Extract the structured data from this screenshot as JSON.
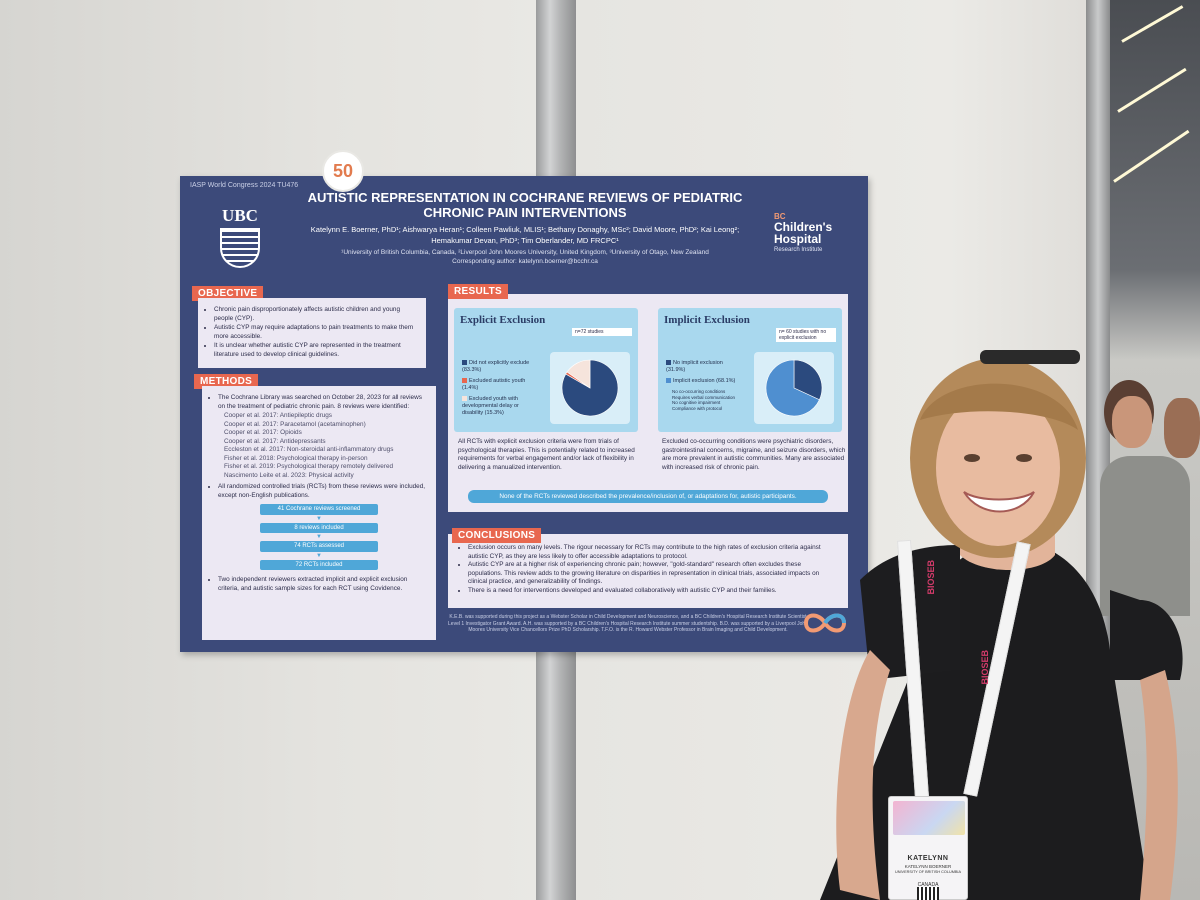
{
  "poster": {
    "badge_mark": "50",
    "conference": "IASP World Congress 2024 TU476",
    "ubc_logo_text": "UBC",
    "title": "AUTISTIC REPRESENTATION IN COCHRANE REVIEWS OF PEDIATRIC CHRONIC PAIN INTERVENTIONS",
    "authors": "Katelynn E. Boerner, PhD¹; Aishwarya Heran¹; Colleen Pawliuk, MLIS¹; Bethany Donaghy, MSc²; David Moore, PhD²; Kai Leong²; Hemakumar Devan, PhD³; Tim Oberlander, MD FRCPC¹",
    "affiliations": "¹University of British Columbia, Canada, ²Liverpool John Moores University, United Kingdom, ³University of Otago, New Zealand",
    "corresponding": "Corresponding author: katelynn.boerner@bcchr.ca",
    "hospital_logo": {
      "top": "BC",
      "main": "Children's Hospital",
      "sub": "Research Institute"
    },
    "objective": {
      "heading": "OBJECTIVE",
      "bullets": [
        "Chronic pain disproportionately affects autistic children and young people (CYP).",
        "Autistic CYP may require adaptations to pain treatments to make them more accessible.",
        "It is unclear whether autistic CYP are represented in the treatment literature used to develop clinical guidelines."
      ]
    },
    "methods": {
      "heading": "METHODS",
      "intro": "The Cochrane Library was searched on October 28, 2023 for all reviews on the treatment of pediatric chronic pain. 8 reviews were identified:",
      "reviews": [
        "Cooper et al. 2017: Antiepileptic drugs",
        "Cooper et al. 2017: Paracetamol (acetaminophen)",
        "Cooper et al. 2017: Opioids",
        "Cooper et al. 2017: Antidepressants",
        "Eccleston et al. 2017: Non-steroidal anti-inflammatory drugs",
        "Fisher et al. 2018: Psychological therapy in-person",
        "Fisher et al. 2019: Psychological therapy remotely delivered",
        "Nascimento Leite et al. 2023: Physical activity"
      ],
      "rct_note": "All randomized controlled trials (RCTs) from these reviews were included, except non-English publications.",
      "flow": [
        "41 Cochrane reviews screened",
        "8 reviews included",
        "74 RCTs assessed",
        "72 RCTs included"
      ],
      "closing": "Two independent reviewers extracted implicit and explicit exclusion criteria, and autistic sample sizes for each RCT using Covidence."
    },
    "results": {
      "heading": "RESULTS",
      "explicit": {
        "title": "Explicit Exclusion",
        "note": "n=72 studies",
        "legend": [
          {
            "label": "Did not explicitly exclude (83.3%)",
            "color": "#2b4a7e"
          },
          {
            "label": "Excluded autistic youth (1.4%)",
            "color": "#e8674f"
          },
          {
            "label": "Excluded youth with developmental delay or disability (15.3%)",
            "color": "#f6e4dc"
          }
        ],
        "text": "All RCTs with explicit exclusion criteria were from trials of psychological therapies. This is potentially related to increased requirements for verbal engagement and/or lack of flexibility in delivering a manualized intervention."
      },
      "implicit": {
        "title": "Implicit Exclusion",
        "note": "n= 60 studies with no explicit exclusion",
        "legend": [
          {
            "label": "No implicit exclusion (31.9%)",
            "color": "#2b4a7e"
          },
          {
            "label": "Implicit exclusion (68.1%)",
            "color": "#4f8fd0"
          }
        ],
        "sub_items": [
          "No co-occurring conditions",
          "Requires verbal communication",
          "No cognitive impairment",
          "Compliance with protocol"
        ],
        "text": "Excluded co-occurring conditions were psychiatric disorders, gastrointestinal concerns, migraine, and seizure disorders, which are more prevalent in autistic communities. Many are associated with increased risk of chronic pain."
      },
      "banner": "None of the RCTs reviewed described the prevalence/inclusion of, or adaptations for, autistic participants."
    },
    "conclusions": {
      "heading": "CONCLUSIONS",
      "bullets": [
        "Exclusion occurs on many levels. The rigour necessary for RCTs may contribute to the high rates of exclusion criteria against autistic CYP, as they are less likely to offer accessible adaptations to protocol.",
        "Autistic CYP are at a higher risk of experiencing chronic pain; however, \"gold-standard\" research often excludes these populations. This review adds to the growing literature on disparities in representation in clinical trials, associated impacts on clinical practice, and generalizability of findings.",
        "There is a need for interventions developed and evaluated collaboratively with autistic CYP and their families."
      ]
    },
    "acknowledgement": "K.E.B. was supported during this project as a Webster Scholar in Child Development and Neuroscience, and a BC Children's Hospital Research Institute Scientist Level 1 Investigator Grant Award. A.H. was supported by a BC Children's Hospital Research Institute summer studentship. B.D. was supported by a Liverpool John Moores University Vice Chancellors Prize PhD Scholarship. T.F.O. is the R. Howard Webster Professor in Brain Imaging and Child Development."
  },
  "attendee_badge": {
    "name": "KATELYNN",
    "full_name": "KATELYNN BOERNER",
    "institution": "UNIVERSITY OF BRITISH COLUMBIA",
    "country": "CANADA"
  },
  "lanyard_brand": "BIOSEB",
  "colors": {
    "poster_bg": "#3c4a7a",
    "section_tag": "#e8674f",
    "panel_bg": "#ece8f3",
    "accent_blue": "#4fa7d8"
  }
}
